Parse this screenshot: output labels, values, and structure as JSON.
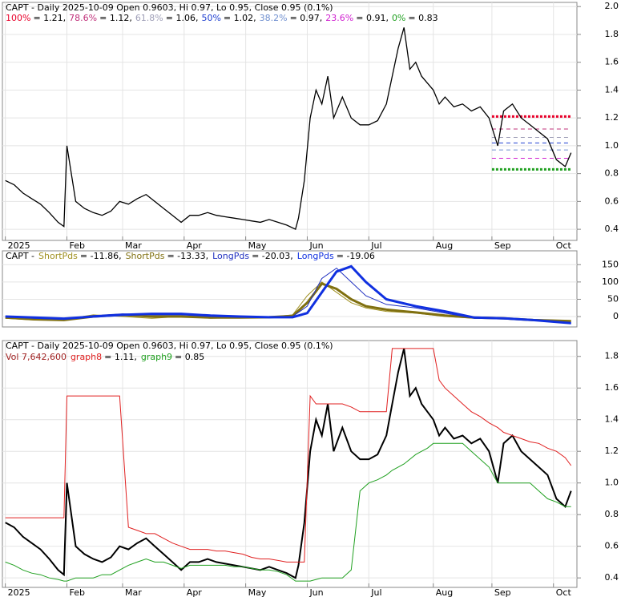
{
  "chart_data": [
    {
      "type": "line",
      "title": "CAPT - Daily 2025-10-09 Open 0.9603, Hi 0.97, Lo 0.95, Close 0.95 (0.1%)",
      "levels": [
        {
          "name": "100%",
          "label": "= 1.21,",
          "value": 1.21,
          "color": "#e8002a"
        },
        {
          "name": "78.6%",
          "label": "= 1.12,",
          "value": 1.12,
          "color": "#c0307a"
        },
        {
          "name": "61.8%",
          "label": "= 1.06,",
          "value": 1.06,
          "color": "#a0a0b8"
        },
        {
          "name": "50%",
          "label": "= 1.02,",
          "value": 1.02,
          "color": "#2040d0"
        },
        {
          "name": "38.2%",
          "label": "= 0.97,",
          "value": 0.97,
          "color": "#7090d0"
        },
        {
          "name": "23.6%",
          "label": "= 0.91,",
          "value": 0.91,
          "color": "#d020d0"
        },
        {
          "name": "0%",
          "label": "= 0.83",
          "value": 0.83,
          "color": "#20a020"
        }
      ],
      "x": [
        0,
        3,
        6,
        9,
        12,
        15,
        18,
        20,
        21,
        24,
        27,
        30,
        33,
        36,
        39,
        42,
        45,
        48,
        51,
        54,
        57,
        60,
        63,
        66,
        69,
        72,
        75,
        78,
        81,
        84,
        87,
        90,
        93,
        96,
        99,
        100,
        102,
        104,
        106,
        108,
        110,
        112,
        115,
        118,
        121,
        124,
        127,
        130,
        132,
        134,
        136,
        138,
        140,
        142,
        144,
        146,
        148,
        150,
        153,
        156,
        159,
        162,
        165,
        168,
        170,
        173,
        176,
        179,
        182,
        185,
        188,
        191,
        193
      ],
      "series": [
        {
          "color": "#000000",
          "values": [
            0.75,
            0.72,
            0.66,
            0.62,
            0.58,
            0.52,
            0.45,
            0.42,
            1.0,
            0.6,
            0.55,
            0.52,
            0.5,
            0.53,
            0.6,
            0.58,
            0.62,
            0.65,
            0.6,
            0.55,
            0.5,
            0.45,
            0.5,
            0.5,
            0.52,
            0.5,
            0.49,
            0.48,
            0.47,
            0.46,
            0.45,
            0.47,
            0.45,
            0.43,
            0.4,
            0.48,
            0.75,
            1.2,
            1.4,
            1.3,
            1.5,
            1.2,
            1.35,
            1.2,
            1.15,
            1.15,
            1.18,
            1.3,
            1.5,
            1.7,
            1.85,
            1.55,
            1.6,
            1.5,
            1.45,
            1.4,
            1.3,
            1.35,
            1.28,
            1.3,
            1.25,
            1.28,
            1.2,
            1.0,
            1.25,
            1.3,
            1.2,
            1.15,
            1.1,
            1.05,
            0.9,
            0.85,
            0.95
          ]
        }
      ],
      "xlim": [
        -1,
        195
      ],
      "xticks": [
        {
          "value": 0,
          "label": "2025"
        },
        {
          "value": 21,
          "label": "Feb"
        },
        {
          "value": 40,
          "label": "Mar"
        },
        {
          "value": 61,
          "label": "Apr"
        },
        {
          "value": 82,
          "label": "May"
        },
        {
          "value": 103,
          "label": "Jun"
        },
        {
          "value": 124,
          "label": "Jul"
        },
        {
          "value": 146,
          "label": "Aug"
        },
        {
          "value": 166,
          "label": "Sep"
        },
        {
          "value": 187,
          "label": "Oct"
        }
      ],
      "ylim": [
        0.32,
        2.03
      ],
      "yticks": [
        0.4,
        0.6,
        0.8,
        {
          "value": 1.0,
          "label": "1.0"
        },
        1.2,
        1.4,
        1.6,
        1.8,
        {
          "value": 2.0,
          "label": "2.0"
        }
      ],
      "grid": true
    },
    {
      "type": "line",
      "title": "CAPT -",
      "x": [
        0,
        10,
        20,
        30,
        40,
        50,
        60,
        70,
        80,
        90,
        98,
        103,
        108,
        113,
        118,
        123,
        130,
        140,
        150,
        160,
        170,
        180,
        193
      ],
      "series": [
        {
          "name": "ShortPds",
          "legend_value": "= -11.86,",
          "color": "#a09020",
          "width": 1,
          "values": [
            -5,
            -10,
            -8,
            5,
            0,
            -5,
            0,
            -5,
            -3,
            -2,
            5,
            60,
            100,
            70,
            40,
            25,
            15,
            10,
            0,
            -5,
            -5,
            -8,
            -11.86
          ]
        },
        {
          "name": "ShortPds",
          "legend_value": "= -13.33,",
          "color": "#807010",
          "width": 3,
          "values": [
            -3,
            -8,
            -10,
            0,
            5,
            0,
            0,
            -3,
            -3,
            -2,
            2,
            40,
            95,
            80,
            50,
            30,
            20,
            12,
            3,
            -3,
            -5,
            -10,
            -13.33
          ]
        },
        {
          "name": "LongPds",
          "legend_value": "= -20.03,",
          "color": "#2030c0",
          "width": 1,
          "values": [
            0,
            -5,
            -8,
            3,
            8,
            5,
            5,
            0,
            -2,
            -3,
            0,
            30,
            110,
            140,
            100,
            60,
            35,
            25,
            10,
            -5,
            -5,
            -10,
            -20.03
          ]
        },
        {
          "name": "LongPds",
          "legend_value": "= -19.06",
          "color": "#1030e0",
          "width": 3,
          "values": [
            0,
            -3,
            -6,
            0,
            5,
            8,
            8,
            3,
            0,
            -2,
            -2,
            10,
            70,
            130,
            145,
            100,
            50,
            30,
            15,
            -3,
            -5,
            -10,
            -19.06
          ]
        }
      ],
      "xlim": [
        -1,
        195
      ],
      "ylim": [
        -30,
        190
      ],
      "yticks": [
        0,
        50,
        100,
        150
      ],
      "grid": true
    },
    {
      "type": "line",
      "title": "CAPT - Daily 2025-10-09 Open 0.9603, Hi 0.97, Lo 0.95, Close 0.95 (0.1%)",
      "volume": "Vol 7,642,600",
      "x": [
        0,
        3,
        6,
        9,
        12,
        15,
        18,
        20,
        21,
        24,
        27,
        30,
        33,
        36,
        39,
        42,
        45,
        48,
        51,
        54,
        57,
        60,
        63,
        66,
        69,
        72,
        75,
        78,
        81,
        84,
        87,
        90,
        93,
        96,
        99,
        100,
        102,
        104,
        106,
        108,
        110,
        112,
        115,
        118,
        121,
        124,
        127,
        130,
        132,
        134,
        136,
        138,
        140,
        142,
        144,
        146,
        148,
        150,
        153,
        156,
        159,
        162,
        165,
        168,
        170,
        173,
        176,
        179,
        182,
        185,
        188,
        191,
        193
      ],
      "series": [
        {
          "color": "#000000",
          "width": 2,
          "values": [
            0.75,
            0.72,
            0.66,
            0.62,
            0.58,
            0.52,
            0.45,
            0.42,
            1.0,
            0.6,
            0.55,
            0.52,
            0.5,
            0.53,
            0.6,
            0.58,
            0.62,
            0.65,
            0.6,
            0.55,
            0.5,
            0.45,
            0.5,
            0.5,
            0.52,
            0.5,
            0.49,
            0.48,
            0.47,
            0.46,
            0.45,
            0.47,
            0.45,
            0.43,
            0.4,
            0.48,
            0.75,
            1.2,
            1.4,
            1.3,
            1.5,
            1.2,
            1.35,
            1.2,
            1.15,
            1.15,
            1.18,
            1.3,
            1.5,
            1.7,
            1.85,
            1.55,
            1.6,
            1.5,
            1.45,
            1.4,
            1.3,
            1.35,
            1.28,
            1.3,
            1.25,
            1.28,
            1.2,
            1.0,
            1.25,
            1.3,
            1.2,
            1.15,
            1.1,
            1.05,
            0.9,
            0.85,
            0.95
          ]
        },
        {
          "name": "graph8",
          "legend_value": "= 1.11,",
          "color": "#e02020",
          "width": 1,
          "values": [
            0.78,
            0.78,
            0.78,
            0.78,
            0.78,
            0.78,
            0.78,
            0.78,
            1.55,
            1.55,
            1.55,
            1.55,
            1.55,
            1.55,
            1.55,
            0.72,
            0.7,
            0.68,
            0.68,
            0.65,
            0.62,
            0.6,
            0.58,
            0.58,
            0.58,
            0.57,
            0.57,
            0.56,
            0.55,
            0.53,
            0.52,
            0.52,
            0.51,
            0.5,
            0.5,
            0.5,
            0.5,
            1.55,
            1.5,
            1.5,
            1.5,
            1.5,
            1.5,
            1.48,
            1.45,
            1.45,
            1.45,
            1.45,
            1.85,
            1.85,
            1.85,
            1.85,
            1.85,
            1.85,
            1.85,
            1.85,
            1.65,
            1.6,
            1.55,
            1.5,
            1.45,
            1.42,
            1.38,
            1.35,
            1.32,
            1.3,
            1.28,
            1.26,
            1.25,
            1.22,
            1.2,
            1.16,
            1.11
          ]
        },
        {
          "name": "graph9",
          "legend_value": "= 0.85",
          "color": "#20a020",
          "width": 1,
          "values": [
            0.5,
            0.48,
            0.45,
            0.43,
            0.42,
            0.4,
            0.39,
            0.38,
            0.38,
            0.4,
            0.4,
            0.4,
            0.42,
            0.42,
            0.45,
            0.48,
            0.5,
            0.52,
            0.5,
            0.5,
            0.48,
            0.46,
            0.48,
            0.48,
            0.48,
            0.48,
            0.48,
            0.47,
            0.47,
            0.46,
            0.45,
            0.45,
            0.44,
            0.42,
            0.38,
            0.38,
            0.38,
            0.38,
            0.39,
            0.4,
            0.4,
            0.4,
            0.4,
            0.45,
            0.95,
            1.0,
            1.02,
            1.05,
            1.08,
            1.1,
            1.12,
            1.15,
            1.18,
            1.2,
            1.22,
            1.25,
            1.25,
            1.25,
            1.25,
            1.25,
            1.2,
            1.15,
            1.1,
            1.0,
            1.0,
            1.0,
            1.0,
            1.0,
            0.95,
            0.9,
            0.88,
            0.85,
            0.85
          ]
        }
      ],
      "xlim": [
        -1,
        195
      ],
      "xticks": [
        {
          "value": 0,
          "label": "2025"
        },
        {
          "value": 21,
          "label": "Feb"
        },
        {
          "value": 40,
          "label": "Mar"
        },
        {
          "value": 61,
          "label": "Apr"
        },
        {
          "value": 82,
          "label": "May"
        },
        {
          "value": 103,
          "label": "Jun"
        },
        {
          "value": 124,
          "label": "Jul"
        },
        {
          "value": 146,
          "label": "Aug"
        },
        {
          "value": 166,
          "label": "Sep"
        },
        {
          "value": 187,
          "label": "Oct"
        }
      ],
      "ylim": [
        0.34,
        1.9
      ],
      "yticks": [
        0.4,
        0.6,
        0.8,
        {
          "value": 1.0,
          "label": "1.0"
        },
        1.2,
        1.4,
        1.6,
        1.8
      ],
      "grid": true
    }
  ]
}
